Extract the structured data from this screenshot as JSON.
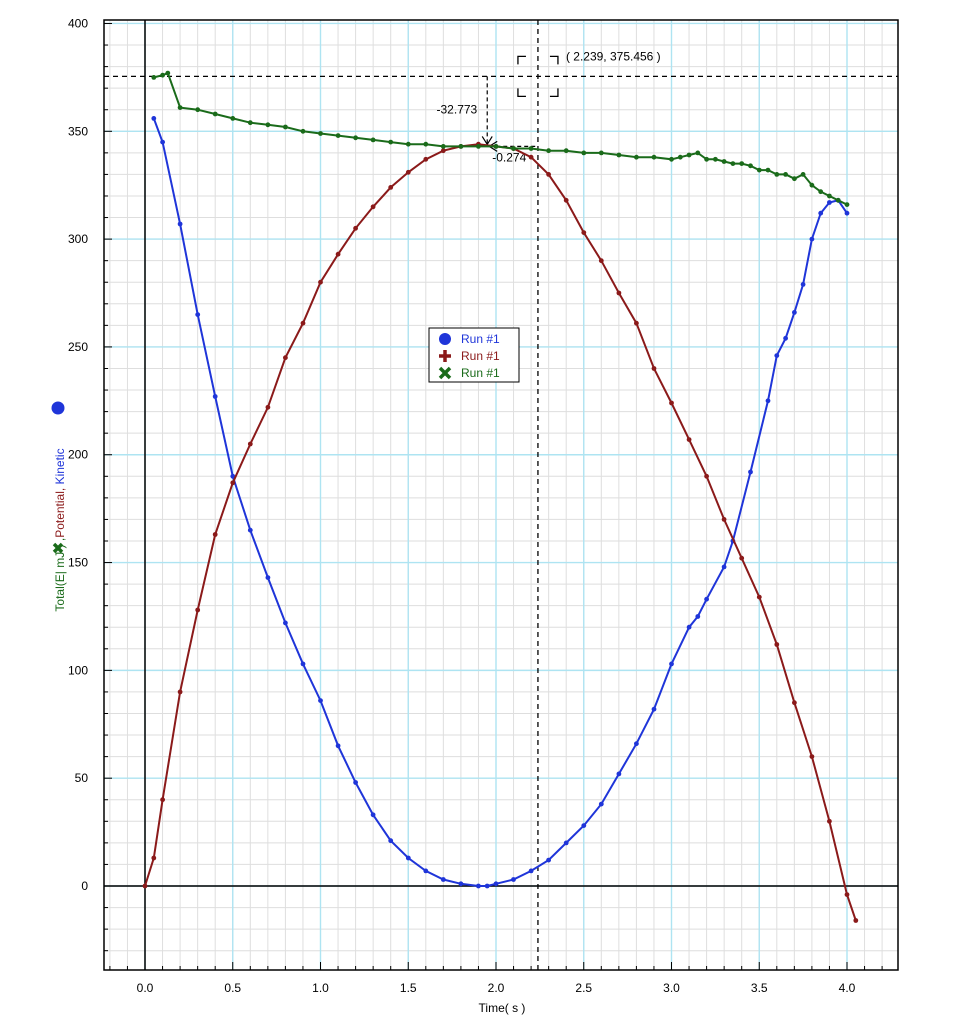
{
  "chart_data": {
    "type": "line",
    "xlabel": "Time( s )",
    "ylabel_parts": [
      {
        "text": "Total(E| mJ ) ,",
        "color": "#1a6b1a"
      },
      {
        "text": "Potential, ",
        "color": "#8b1a1a"
      },
      {
        "text": "Kinetic",
        "color": "#1f35d9"
      }
    ],
    "xlim": [
      -0.2,
      4.35
    ],
    "ylim": [
      -40,
      400
    ],
    "x_ticks": [
      "0.0",
      "0.5",
      "1.0",
      "1.5",
      "2.0",
      "2.5",
      "3.0",
      "3.5",
      "4.0"
    ],
    "y_ticks": [
      "0",
      "50",
      "100",
      "150",
      "200",
      "250",
      "300",
      "350",
      "400"
    ],
    "grid": true,
    "legend_position": "center",
    "colors": {
      "kinetic": "#1f35d9",
      "potential": "#8b1a1a",
      "total": "#1a6b1a",
      "grid_major": "#aee4f2",
      "grid_minor": "#dcdcdc"
    },
    "series": [
      {
        "name": "Run #1",
        "marker": "circle",
        "color": "#1f35d9",
        "x": [
          0.05,
          0.1,
          0.2,
          0.3,
          0.4,
          0.5,
          0.6,
          0.7,
          0.8,
          0.9,
          1.0,
          1.1,
          1.2,
          1.3,
          1.4,
          1.5,
          1.6,
          1.7,
          1.8,
          1.9,
          1.95,
          2.0,
          2.1,
          2.2,
          2.3,
          2.4,
          2.5,
          2.6,
          2.7,
          2.8,
          2.9,
          3.0,
          3.1,
          3.15,
          3.2,
          3.3,
          3.35,
          3.45,
          3.55,
          3.6,
          3.65,
          3.7,
          3.75,
          3.8,
          3.85,
          3.9,
          3.95,
          4.0
        ],
        "y": [
          356,
          345,
          307,
          265,
          227,
          190,
          165,
          143,
          122,
          103,
          86,
          65,
          48,
          33,
          21,
          13,
          7,
          3,
          1,
          0,
          0,
          1,
          3,
          7,
          12,
          20,
          28,
          38,
          52,
          66,
          82,
          103,
          120,
          125,
          133,
          148,
          160,
          192,
          225,
          246,
          254,
          266,
          279,
          300,
          312,
          317,
          318,
          312
        ]
      },
      {
        "name": "Run #1",
        "marker": "plus",
        "color": "#8b1a1a",
        "x": [
          0.0,
          0.05,
          0.1,
          0.2,
          0.3,
          0.4,
          0.5,
          0.6,
          0.7,
          0.8,
          0.9,
          1.0,
          1.1,
          1.2,
          1.3,
          1.4,
          1.5,
          1.6,
          1.7,
          1.8,
          1.9,
          2.0,
          2.1,
          2.2,
          2.3,
          2.4,
          2.5,
          2.6,
          2.7,
          2.8,
          2.9,
          3.0,
          3.1,
          3.2,
          3.3,
          3.4,
          3.5,
          3.6,
          3.7,
          3.8,
          3.9,
          4.0,
          4.05
        ],
        "y": [
          0,
          13,
          40,
          90,
          128,
          163,
          187,
          205,
          222,
          245,
          261,
          280,
          293,
          305,
          315,
          324,
          331,
          337,
          341,
          343,
          344,
          343,
          342,
          338,
          330,
          318,
          303,
          290,
          275,
          261,
          240,
          224,
          207,
          190,
          170,
          152,
          134,
          112,
          85,
          60,
          30,
          -4,
          -16
        ]
      },
      {
        "name": "Run #1",
        "marker": "cross",
        "color": "#1a6b1a",
        "x": [
          0.05,
          0.1,
          0.13,
          0.2,
          0.3,
          0.4,
          0.5,
          0.6,
          0.7,
          0.8,
          0.9,
          1.0,
          1.1,
          1.2,
          1.3,
          1.4,
          1.5,
          1.6,
          1.7,
          1.8,
          1.9,
          2.0,
          2.1,
          2.2,
          2.3,
          2.4,
          2.5,
          2.6,
          2.7,
          2.8,
          2.9,
          3.0,
          3.05,
          3.1,
          3.15,
          3.2,
          3.25,
          3.3,
          3.35,
          3.4,
          3.45,
          3.5,
          3.55,
          3.6,
          3.65,
          3.7,
          3.75,
          3.8,
          3.85,
          3.9,
          3.95,
          4.0
        ],
        "y": [
          375,
          376,
          377,
          361,
          360,
          358,
          356,
          354,
          353,
          352,
          350,
          349,
          348,
          347,
          346,
          345,
          344,
          344,
          343,
          343,
          343,
          343,
          342,
          342,
          341,
          341,
          340,
          340,
          339,
          338,
          338,
          337,
          338,
          339,
          340,
          337,
          337,
          336,
          335,
          335,
          334,
          332,
          332,
          330,
          330,
          328,
          330,
          325,
          322,
          320,
          318,
          316
        ]
      }
    ],
    "legend": [
      "Run #1",
      "Run #1",
      "Run #1"
    ],
    "annotations": {
      "crosshair_label": "( 2.239, 375.456 )",
      "crosshair_x": 2.239,
      "crosshair_y": 375.456,
      "delta_x_label": "-32.773",
      "delta_y_label": "-0.274"
    }
  }
}
